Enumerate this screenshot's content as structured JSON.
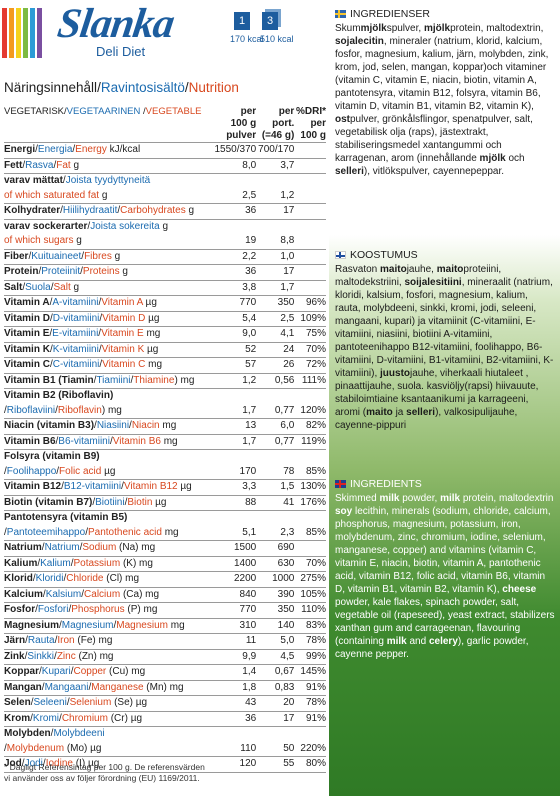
{
  "brand": {
    "logo": "Slanka",
    "subtitle": "Deli Diet",
    "pack1": "1",
    "pack2": "3",
    "kcal1": "170 kcal",
    "kcal2": "510 kcal",
    "colors": [
      "#e43a31",
      "#f39a1f",
      "#f5d21d",
      "#7dbb42",
      "#2b9bd6",
      "#7a4fa0"
    ]
  },
  "nutrition": {
    "title_sv": "Näringsinnehåll",
    "title_fi": "Ravintosisältö",
    "title_en": "Nutrition",
    "cat_sv": "VEGETARISK",
    "cat_fi": "VEGETAARINEN",
    "cat_en": "VEGETABLE",
    "col1": "per 100 g pulver",
    "col2": "per port. (=46 g)",
    "col3": "%DRI* per 100 g",
    "col1_a": "per",
    "col1_b": "100 g",
    "col1_c": "pulver",
    "col2_a": "per",
    "col2_b": "port.",
    "col2_c": "(=46 g)",
    "col3_a": "%DRI*",
    "col3_b": "per",
    "col3_c": "100 g",
    "rows": [
      {
        "sv": "Energi",
        "fi": "Energia",
        "en": "Energy",
        "unit": " kJ/kcal",
        "v1": "1550/370",
        "v2": "700/170",
        "v3": ""
      },
      {
        "sv": "Fett",
        "fi": "Rasva",
        "en": "Fat",
        "unit": " g",
        "v1": "8,0",
        "v2": "3,7",
        "v3": ""
      },
      {
        "sv": "varav mättat",
        "fi": "Joista tyydyttyneitä",
        "en": "",
        "unit": "",
        "v1": "",
        "v2": "",
        "v3": "",
        "nb": true
      },
      {
        "sv": "",
        "fi": "",
        "en": "of which saturated fat",
        "unit": " g",
        "v1": "2,5",
        "v2": "1,2",
        "v3": "",
        "indent": true
      },
      {
        "sv": "Kolhydrater",
        "fi": "Hiilihydraatit",
        "en": "Carbohydrates",
        "unit": " g",
        "v1": "36",
        "v2": "17",
        "v3": ""
      },
      {
        "sv": "varav sockerarter",
        "fi": "Joista sokereita",
        "en": "",
        "unit": " g",
        "v1": "",
        "v2": "",
        "v3": "",
        "nb": true
      },
      {
        "sv": "",
        "fi": "",
        "en": "of which sugars",
        "unit": " g",
        "v1": "19",
        "v2": "8,8",
        "v3": "",
        "indent": true
      },
      {
        "sv": "Fiber",
        "fi": "Kuituaineet",
        "en": "Fibres",
        "unit": " g",
        "v1": "2,2",
        "v2": "1,0",
        "v3": ""
      },
      {
        "sv": "Protein",
        "fi": "Proteiinit",
        "en": "Proteins",
        "unit": " g",
        "v1": "36",
        "v2": "17",
        "v3": ""
      },
      {
        "sv": "Salt",
        "fi": "Suola",
        "en": "Salt",
        "unit": " g",
        "v1": "3,8",
        "v2": "1,7",
        "v3": ""
      },
      {
        "sv": "Vitamin A",
        "fi": "A-vitamiini",
        "en": "Vitamin A",
        "unit": " µg",
        "v1": "770",
        "v2": "350",
        "v3": "96%"
      },
      {
        "sv": "Vitamin D",
        "fi": "D-vitamiini",
        "en": "Vitamin D",
        "unit": " µg",
        "v1": "5,4",
        "v2": "2,5",
        "v3": "109%"
      },
      {
        "sv": "Vitamin E",
        "fi": "E-vitamiini",
        "en": "Vitamin E",
        "unit": " mg",
        "v1": "9,0",
        "v2": "4,1",
        "v3": "75%"
      },
      {
        "sv": "Vitamin K",
        "fi": "K-vitamiini",
        "en": "Vitamin K",
        "unit": " µg",
        "v1": "52",
        "v2": "24",
        "v3": "70%"
      },
      {
        "sv": "Vitamin C",
        "fi": "C-vitamiini",
        "en": "Vitamin C",
        "unit": " mg",
        "v1": "57",
        "v2": "26",
        "v3": "72%"
      },
      {
        "sv": "Vitamin B1 (Tiamin",
        "fi": "Tiamiini",
        "en": "Thiamine",
        "unit": ") mg",
        "v1": "1,2",
        "v2": "0,56",
        "v3": "111%"
      },
      {
        "sv": "Vitamin B2 (Riboflavin)",
        "fi": "",
        "en": "",
        "unit": "",
        "v1": "",
        "v2": "",
        "v3": "",
        "nb": true
      },
      {
        "sv": "",
        "fi": "Riboflaviini",
        "en": "Riboflavin",
        "unit": ") mg",
        "v1": "1,7",
        "v2": "0,77",
        "v3": "120%",
        "indent": true,
        "pre": "/"
      },
      {
        "sv": "Niacin (vitamin B3)",
        "fi": "Niasiini",
        "en": "Niacin",
        "unit": " mg",
        "v1": "13",
        "v2": "6,0",
        "v3": "82%"
      },
      {
        "sv": "Vitamin B6",
        "fi": "B6-vitamiini",
        "en": "Vitamin B6",
        "unit": " mg",
        "v1": "1,7",
        "v2": "0,77",
        "v3": "119%"
      },
      {
        "sv": "Folsyra (vitamin B9)",
        "fi": "",
        "en": "",
        "unit": "",
        "v1": "",
        "v2": "",
        "v3": "",
        "nb": true
      },
      {
        "sv": "",
        "fi": "Foolihappo",
        "en": "Folic acid",
        "unit": " µg",
        "v1": "170",
        "v2": "78",
        "v3": "85%",
        "indent": true,
        "pre": "/"
      },
      {
        "sv": "Vitamin B12",
        "fi": "B12-vitamiini",
        "en": "Vitamin B12",
        "unit": " µg",
        "v1": "3,3",
        "v2": "1,5",
        "v3": "130%"
      },
      {
        "sv": "Biotin (vitamin B7)",
        "fi": "Biotiini",
        "en": "Biotin",
        "unit": " µg",
        "v1": "88",
        "v2": "41",
        "v3": "176%"
      },
      {
        "sv": "Pantotensyra (vitamin B5)",
        "fi": "",
        "en": "",
        "unit": "",
        "v1": "",
        "v2": "",
        "v3": "",
        "nb": true
      },
      {
        "sv": "",
        "fi": "Pantoteemihappo",
        "en": "Pantothenic acid",
        "unit": " mg",
        "v1": "5,1",
        "v2": "2,3",
        "v3": "85%",
        "indent": true,
        "pre": "/"
      },
      {
        "sv": "Natrium",
        "fi": "Natrium",
        "en": "Sodium",
        "unit": " (Na) mg",
        "v1": "1500",
        "v2": "690",
        "v3": ""
      },
      {
        "sv": "Kalium",
        "fi": "Kalium",
        "en": "Potassium",
        "unit": " (K) mg",
        "v1": "1400",
        "v2": "630",
        "v3": "70%"
      },
      {
        "sv": "Klorid",
        "fi": "Kloridi",
        "en": "Chloride",
        "unit": " (Cl) mg",
        "v1": "2200",
        "v2": "1000",
        "v3": "275%"
      },
      {
        "sv": "Kalcium",
        "fi": "Kalsium",
        "en": "Calcium",
        "unit": " (Ca) mg",
        "v1": "840",
        "v2": "390",
        "v3": "105%"
      },
      {
        "sv": "Fosfor",
        "fi": "Fosfori",
        "en": "Phosphorus",
        "unit": " (P) mg",
        "v1": "770",
        "v2": "350",
        "v3": "110%"
      },
      {
        "sv": "Magnesium",
        "fi": "Magnesium",
        "en": "Magnesium",
        "unit": " mg",
        "v1": "310",
        "v2": "140",
        "v3": "83%"
      },
      {
        "sv": "Järn",
        "fi": "Rauta",
        "en": "Iron",
        "unit": " (Fe) mg",
        "v1": "11",
        "v2": "5,0",
        "v3": "78%"
      },
      {
        "sv": "Zink",
        "fi": "Sinkki",
        "en": "Zinc",
        "unit": " (Zn) mg",
        "v1": "9,9",
        "v2": "4,5",
        "v3": "99%"
      },
      {
        "sv": "Koppar",
        "fi": "Kupari",
        "en": "Copper",
        "unit": " (Cu) mg",
        "v1": "1,4",
        "v2": "0,67",
        "v3": "145%"
      },
      {
        "sv": "Mangan",
        "fi": "Mangaani",
        "en": "Manganese",
        "unit": " (Mn) mg",
        "v1": "1,8",
        "v2": "0,83",
        "v3": "91%"
      },
      {
        "sv": "Selen",
        "fi": "Seleeni",
        "en": "Selenium",
        "unit": " (Se) µg",
        "v1": "43",
        "v2": "20",
        "v3": "78%"
      },
      {
        "sv": "Krom",
        "fi": "Kromi",
        "en": "Chromium",
        "unit": " (Cr) µg",
        "v1": "36",
        "v2": "17",
        "v3": "91%"
      },
      {
        "sv": "Molybden",
        "fi": "Molybdeeni",
        "en": "",
        "unit": "",
        "v1": "",
        "v2": "",
        "v3": "",
        "nb": true
      },
      {
        "sv": "",
        "fi": "",
        "en": "Molybdenum",
        "unit": " (Mo) µg",
        "v1": "110",
        "v2": "50",
        "v3": "220%",
        "indent": true,
        "pre": "/"
      },
      {
        "sv": "Jod",
        "fi": "Jodi",
        "en": "Iodine",
        "unit": " (I) µg",
        "v1": "120",
        "v2": "55",
        "v3": "80%"
      }
    ],
    "footnote1": "*  Dagligt Referensintag per 100 g. De referensvärden",
    "footnote2": "   vi använder oss av följer förordning (EU) 1169/2011."
  },
  "ingredients": {
    "sv_head": "INGREDIENSER",
    "sv_text": "Skummjölkspulver, mjölkprotein, maltodextrin, sojalecitin, mineraler (natrium, klorid, kalcium, fosfor, magnesium, kalium, järn, molybden, zink, krom, jod, selen, mangan, koppar)och vitaminer (vitamin C, vitamin E, niacin, biotin, vitamin A, pantotensyra, vitamin B12, folsyra, vitamin B6, vitamin D, vitamin B1, vitamin B2, vitamin K), ostpulver, grönkålsflingor, spenatpulver, salt, vegetabilisk olja (raps), jästextrakt, stabiliseringsmedel xantangummi och karragenan, arom (innehållande mjölk och selleri), vitlökspulver, cayennepeppar.",
    "fi_head": "KOOSTUMUS",
    "fi_text": "Rasvaton maitojauhe, maitoproteiini, maltodekstriini, soijalesitiini, mineraalit (natrium, kloridi, kalsium, fosfori, magnesium, kalium, rauta, molybdeeni, sinkki, kromi, jodi, seleeni, mangaani, kupari) ja vitamiinit (C-vitamiini, E-vitamiini, niasiini, biotiini A-vitamiini, pantoteenihappo B12-vitamiini, foolihappo, B6-vitamiini, D-vitamiini, B1-vitamiini, B2-vitamiini, K-vitamiini), juustojauhe, viherkaali hiutaleet , pinaattijauhe, suola. kasviöljy(rapsi) hiivauute, stabiloimtiaine ksantaanikumi ja karrageeni, aromi (maito ja selleri), valkosipulijauhe, cayenne-pippuri",
    "en_head": "INGREDIENTS",
    "en_text": "Skimmed milk powder, milk protein, maltodextrin soy lecithin, minerals (sodium, chloride, calcium, phosphorus, magnesium, potassium, iron, molybdenum, zinc, chromium, iodine, selenium, manganese, copper) and vitamins (vitamin C, vitamin E, niacin, biotin, vitamin A, pantothenic acid, vitamin B12, folic acid, vitamin B6, vitamin D, vitamin B1, vitamin B2, vitamin K), cheese powder, kale flakes, spinach powder, salt, vegetable oil (rapeseed), yeast extract, stabilizers xanthan gum and carrageenan, flavouring (containing milk and celery), garlic powder, cayenne pepper."
  }
}
